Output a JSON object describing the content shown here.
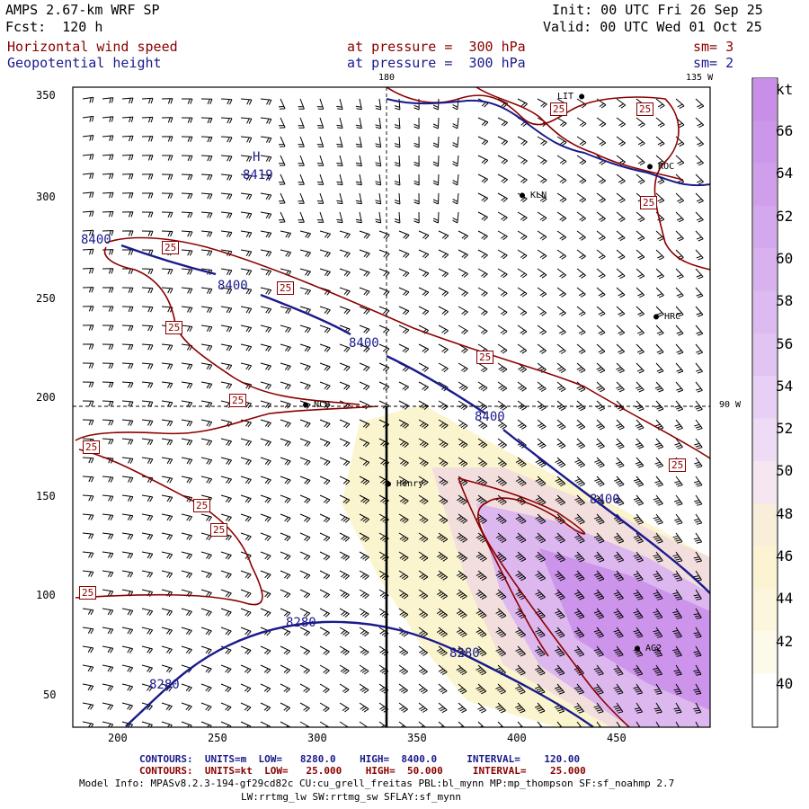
{
  "header": {
    "title": "AMPS 2.67-km WRF SP",
    "forecast": "Fcst:  120 h",
    "init": "Init: 00 UTC Fri 26 Sep 25",
    "valid": "Valid: 00 UTC Wed 01 Oct 25",
    "field1": {
      "name": "Horizontal wind speed",
      "level": "at pressure =  300 hPa",
      "sm": "sm= 3"
    },
    "field2": {
      "name": "Geopotential height",
      "level": "at pressure =  300 hPa",
      "sm": "sm= 2"
    }
  },
  "map": {
    "x_ticks": [
      "200",
      "250",
      "300",
      "350",
      "400",
      "450"
    ],
    "y_ticks": [
      "350",
      "300",
      "250",
      "200",
      "150",
      "100",
      "50"
    ],
    "meridian_labels": [
      "180",
      "135 W",
      "90 W"
    ],
    "colors": {
      "coast": "#8b0000",
      "height": "#1a1a8c",
      "frame": "#000000"
    },
    "stations": [
      {
        "name": "KLN"
      },
      {
        "name": "ROC"
      },
      {
        "name": "HRC"
      },
      {
        "name": "NCO"
      },
      {
        "name": "Henry"
      },
      {
        "name": "AG2"
      },
      {
        "name": "LIT"
      }
    ],
    "high": {
      "letter": "H",
      "value": "8419"
    },
    "height_labels": [
      "8400",
      "8400",
      "8400",
      "8400",
      "8400",
      "8280",
      "8280",
      "8280"
    ],
    "speed_labels": [
      "25",
      "25",
      "25",
      "25",
      "25",
      "25",
      "25",
      "25",
      "25",
      "25",
      "25",
      "25",
      "25"
    ]
  },
  "colorbar": {
    "unit": "kt",
    "ticks": [
      "66",
      "64",
      "62",
      "60",
      "58",
      "56",
      "54",
      "52",
      "50",
      "48",
      "46",
      "44",
      "42",
      "40"
    ]
  },
  "footer": {
    "line1": {
      "label": "CONTOURS:",
      "units": "UNITS=m",
      "low": "LOW=   8280.0",
      "high": "HIGH=  8400.0",
      "interval": "INTERVAL=    120.00"
    },
    "line2": {
      "label": "CONTOURS:",
      "units": "UNITS=kt",
      "low": "LOW=   25.000",
      "high": "HIGH=  50.000",
      "interval": "INTERVAL=    25.000"
    },
    "model_info": "Model Info: MPASv8.2.3-194-gf29cd82c CU:cu_grell_freitas PBL:bl_mynn MP:mp_thompson SF:sf_noahmp 2.7",
    "model_info2": "LW:rrtmg_lw SW:rrtmg_sw SFLAY:sf_mynn"
  }
}
